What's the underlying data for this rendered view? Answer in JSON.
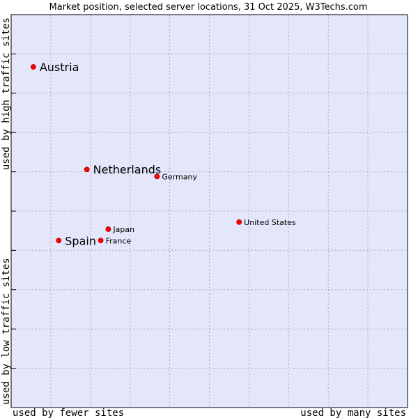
{
  "chart_data": {
    "type": "scatter",
    "title": "Market position, selected server locations, 31 Oct 2025, W3Techs.com",
    "xlabel_left": "used by fewer sites",
    "xlabel_right": "used by many sites",
    "ylabel_bottom": "used by low traffic sites",
    "ylabel_top": "used by high traffic sites",
    "xlim": [
      0,
      100
    ],
    "ylim": [
      0,
      100
    ],
    "grid": true,
    "colors": {
      "plot_bg": "#e4e6fa",
      "grid": "#a9abc6",
      "frame": "#000000",
      "marker": "#ff0000"
    },
    "points": [
      {
        "name": "Austria",
        "x": 5.6,
        "y": 86.7,
        "size": "large"
      },
      {
        "name": "Netherlands",
        "x": 19.1,
        "y": 60.6,
        "size": "large"
      },
      {
        "name": "Germany",
        "x": 36.8,
        "y": 58.8,
        "size": "small"
      },
      {
        "name": "United States",
        "x": 57.5,
        "y": 47.2,
        "size": "small"
      },
      {
        "name": "Japan",
        "x": 24.5,
        "y": 45.4,
        "size": "small"
      },
      {
        "name": "Spain",
        "x": 12.0,
        "y": 42.5,
        "size": "large"
      },
      {
        "name": "France",
        "x": 22.6,
        "y": 42.5,
        "size": "small"
      }
    ]
  }
}
